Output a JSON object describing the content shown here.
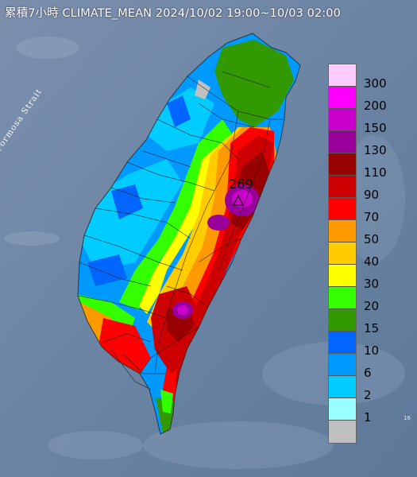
{
  "title": "累積7小時 CLIMATE_MEAN 2024/10/02 19:00~10/03 02:00",
  "strait_label": "Formosa Strait",
  "max_value": "269",
  "legend": [
    {
      "label": "300",
      "color": "#ffccff"
    },
    {
      "label": "200",
      "color": "#ff00ff"
    },
    {
      "label": "150",
      "color": "#cc00cc"
    },
    {
      "label": "130",
      "color": "#990099"
    },
    {
      "label": "110",
      "color": "#990000"
    },
    {
      "label": "90",
      "color": "#cc0000"
    },
    {
      "label": "70",
      "color": "#ff0000"
    },
    {
      "label": "50",
      "color": "#ff9900"
    },
    {
      "label": "40",
      "color": "#ffcc00"
    },
    {
      "label": "30",
      "color": "#ffff00"
    },
    {
      "label": "20",
      "color": "#33ff00"
    },
    {
      "label": "15",
      "color": "#339900"
    },
    {
      "label": "10",
      "color": "#0066ff"
    },
    {
      "label": "6",
      "color": "#0099ff"
    },
    {
      "label": "2",
      "color": "#00ccff"
    },
    {
      "label": "1",
      "color": "#99ffff"
    },
    {
      "label": "",
      "color": "#c0c0c0"
    }
  ]
}
